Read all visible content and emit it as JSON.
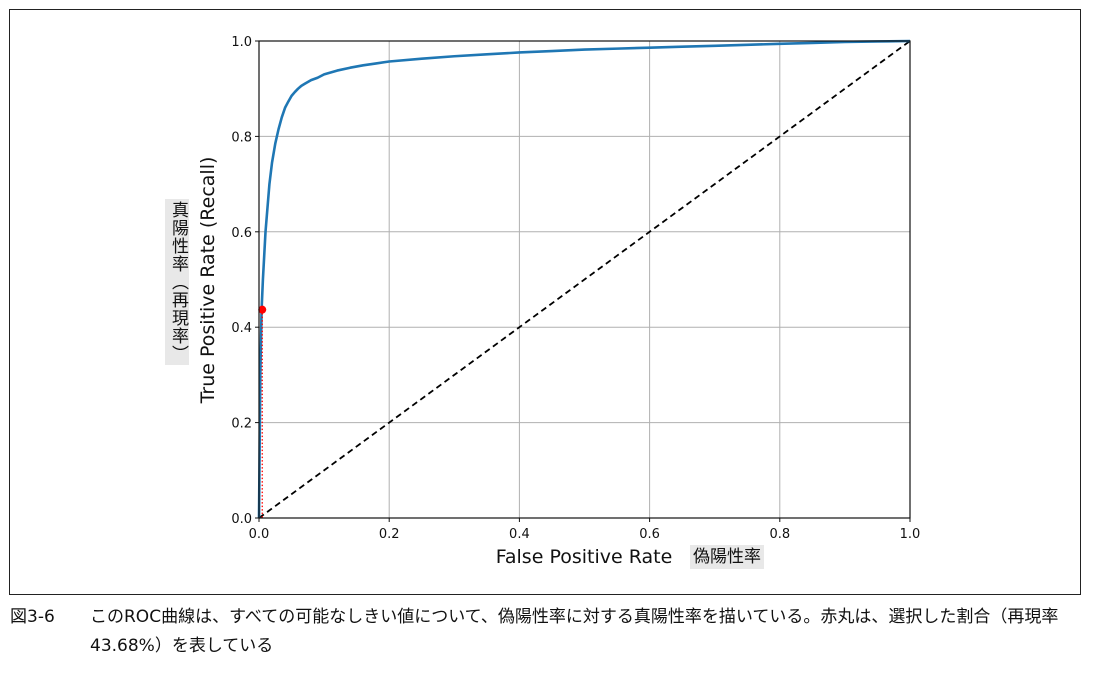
{
  "chart_data": {
    "type": "line",
    "xlabel": "False Positive Rate",
    "ylabel": "True Positive Rate (Recall)",
    "xlabel_ja": "偽陽性率",
    "ylabel_ja": "真陽性率（再現率）",
    "xlim": [
      0.0,
      1.0
    ],
    "ylim": [
      0.0,
      1.0
    ],
    "x_ticks": [
      "0.0",
      "0.2",
      "0.4",
      "0.6",
      "0.8",
      "1.0"
    ],
    "y_ticks": [
      "0.0",
      "0.2",
      "0.4",
      "0.6",
      "0.8",
      "1.0"
    ],
    "grid": true,
    "series": [
      {
        "color": "#1f77b4",
        "style": "solid",
        "x": [
          0.0,
          0.002,
          0.004,
          0.006,
          0.008,
          0.01,
          0.013,
          0.016,
          0.02,
          0.025,
          0.03,
          0.035,
          0.04,
          0.045,
          0.05,
          0.055,
          0.06,
          0.065,
          0.07,
          0.08,
          0.09,
          0.1,
          0.12,
          0.14,
          0.16,
          0.18,
          0.2,
          0.25,
          0.3,
          0.35,
          0.4,
          0.45,
          0.5,
          0.55,
          0.6,
          0.65,
          0.7,
          0.75,
          0.8,
          0.85,
          0.9,
          0.95,
          1.0
        ],
        "y": [
          0.0,
          0.3,
          0.437,
          0.5,
          0.55,
          0.6,
          0.65,
          0.7,
          0.745,
          0.785,
          0.815,
          0.84,
          0.86,
          0.873,
          0.885,
          0.893,
          0.9,
          0.906,
          0.91,
          0.918,
          0.923,
          0.93,
          0.938,
          0.944,
          0.949,
          0.953,
          0.957,
          0.963,
          0.968,
          0.972,
          0.976,
          0.979,
          0.982,
          0.984,
          0.986,
          0.988,
          0.99,
          0.992,
          0.994,
          0.996,
          0.998,
          0.999,
          1.0
        ]
      },
      {
        "color": "#000000",
        "style": "dashed",
        "x": [
          0.0,
          1.0
        ],
        "y": [
          0.0,
          1.0
        ]
      }
    ],
    "marker": {
      "x": 0.005,
      "y": 0.4368,
      "color": "#ff0000"
    }
  },
  "caption": {
    "number": "図3-6",
    "text": "このROC曲線は、すべての可能なしきい値について、偽陽性率に対する真陽性率を描いている。赤丸は、選択した割合（再現率43.68%）を表している"
  }
}
